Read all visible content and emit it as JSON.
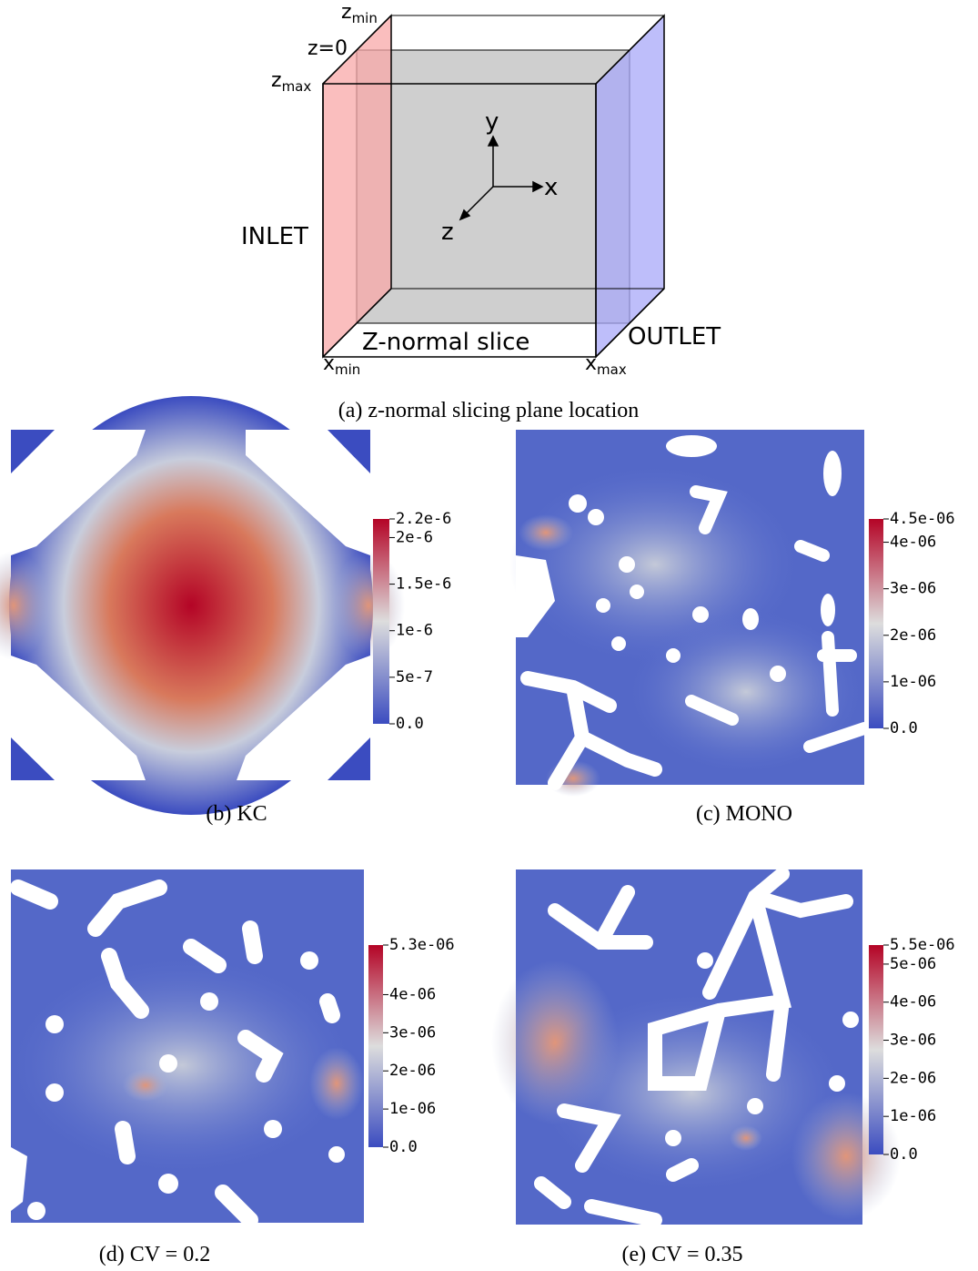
{
  "diagram": {
    "labels": {
      "zmin": {
        "base": "z",
        "sub": "min"
      },
      "z0": "z=0",
      "zmax": {
        "base": "z",
        "sub": "max"
      },
      "inlet": "INLET",
      "outlet": "OUTLET",
      "slice": "Z-normal slice",
      "xmin": {
        "base": "x",
        "sub": "min"
      },
      "xmax": {
        "base": "x",
        "sub": "max"
      },
      "axis_y": "y",
      "axis_x": "x",
      "axis_z": "z"
    },
    "caption": "(a) z-normal slicing plane location"
  },
  "panels": [
    {
      "caption": "(b) KC",
      "colorbar_ticks": [
        {
          "value": 0,
          "label": "0.0"
        },
        {
          "value": 5e-07,
          "label": "5e-7"
        },
        {
          "value": 1e-06,
          "label": "1e-6"
        },
        {
          "value": 1.5e-06,
          "label": "1.5e-6"
        },
        {
          "value": 2e-06,
          "label": "2e-6"
        },
        {
          "value": 2.2e-06,
          "label": "2.2e-6"
        }
      ]
    },
    {
      "caption": "(c) MONO",
      "colorbar_ticks": [
        {
          "value": 0,
          "label": "0.0"
        },
        {
          "value": 1e-06,
          "label": "1e-06"
        },
        {
          "value": 2e-06,
          "label": "2e-06"
        },
        {
          "value": 3e-06,
          "label": "3e-06"
        },
        {
          "value": 4e-06,
          "label": "4e-06"
        },
        {
          "value": 4.5e-06,
          "label": "4.5e-06"
        }
      ]
    },
    {
      "caption": "(d) CV = 0.2",
      "colorbar_ticks": [
        {
          "value": 0,
          "label": "0.0"
        },
        {
          "value": 1e-06,
          "label": "1e-06"
        },
        {
          "value": 2e-06,
          "label": "2e-06"
        },
        {
          "value": 3e-06,
          "label": "3e-06"
        },
        {
          "value": 4e-06,
          "label": "4e-06"
        },
        {
          "value": 5.3e-06,
          "label": "5.3e-06"
        }
      ]
    },
    {
      "caption": "(e) CV = 0.35",
      "colorbar_ticks": [
        {
          "value": 0,
          "label": "0.0"
        },
        {
          "value": 1e-06,
          "label": "1e-06"
        },
        {
          "value": 2e-06,
          "label": "2e-06"
        },
        {
          "value": 3e-06,
          "label": "3e-06"
        },
        {
          "value": 4e-06,
          "label": "4e-06"
        },
        {
          "value": 5e-06,
          "label": "5e-06"
        },
        {
          "value": 5.5e-06,
          "label": "5.5e-06"
        }
      ]
    }
  ]
}
